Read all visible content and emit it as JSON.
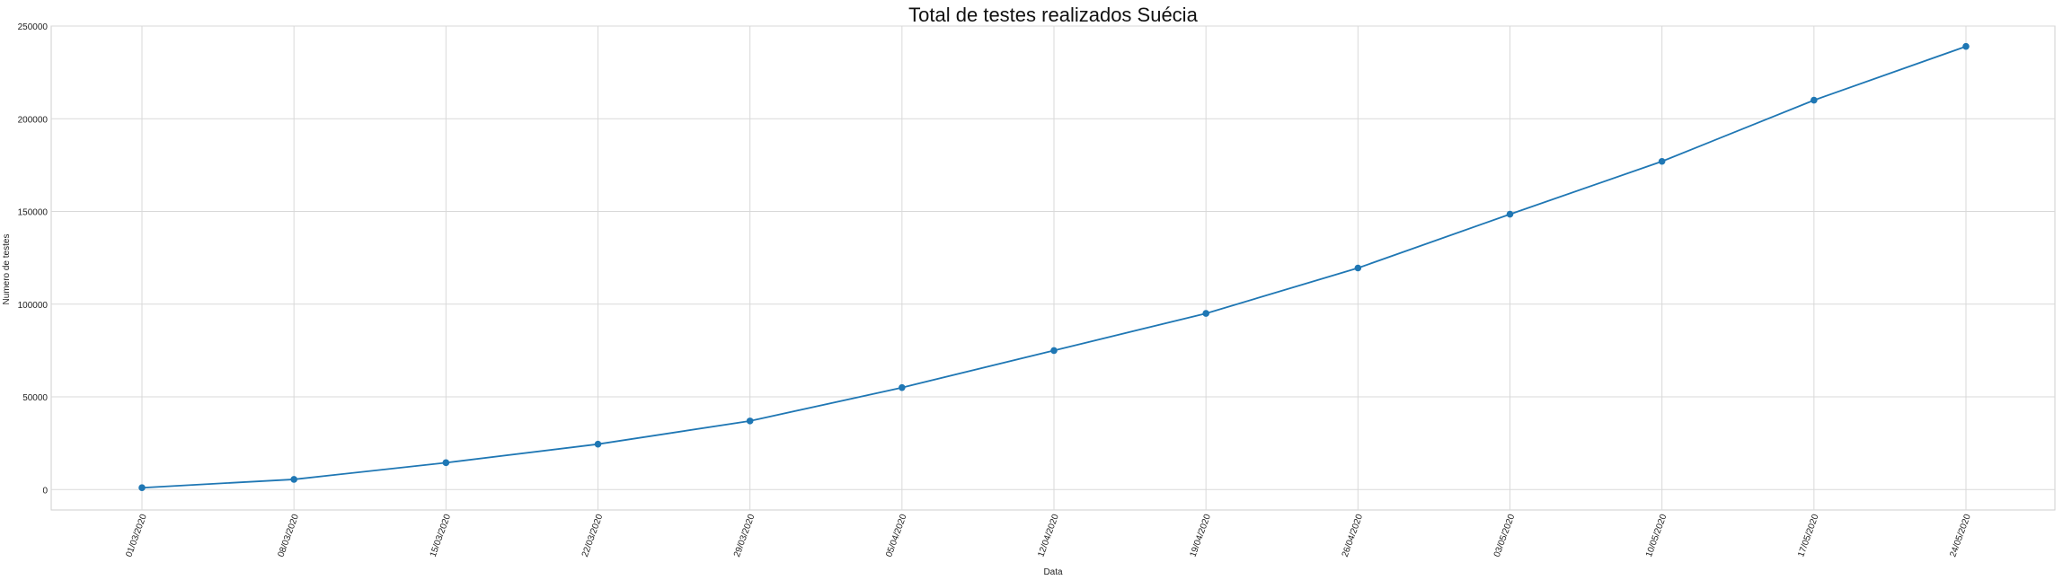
{
  "chart_data": {
    "type": "line",
    "title": "Total de testes realizados Suécia",
    "xlabel": "Data",
    "ylabel": "Numero de testes",
    "x": [
      "01/03/2020",
      "08/03/2020",
      "15/03/2020",
      "22/03/2020",
      "29/03/2020",
      "05/04/2020",
      "12/04/2020",
      "19/04/2020",
      "26/04/2020",
      "03/05/2020",
      "10/05/2020",
      "17/05/2020",
      "24/05/2020"
    ],
    "series": [
      {
        "values": [
          1000,
          5500,
          14500,
          24500,
          37000,
          55000,
          75000,
          95000,
          119500,
          148500,
          177000,
          210000,
          239000
        ],
        "color": "#1f77b4"
      }
    ],
    "ylim": [
      -11000,
      250000
    ],
    "yticks": [
      0,
      50000,
      100000,
      150000,
      200000,
      250000
    ],
    "grid": true,
    "x_tick_rotation": "rotated labels"
  }
}
